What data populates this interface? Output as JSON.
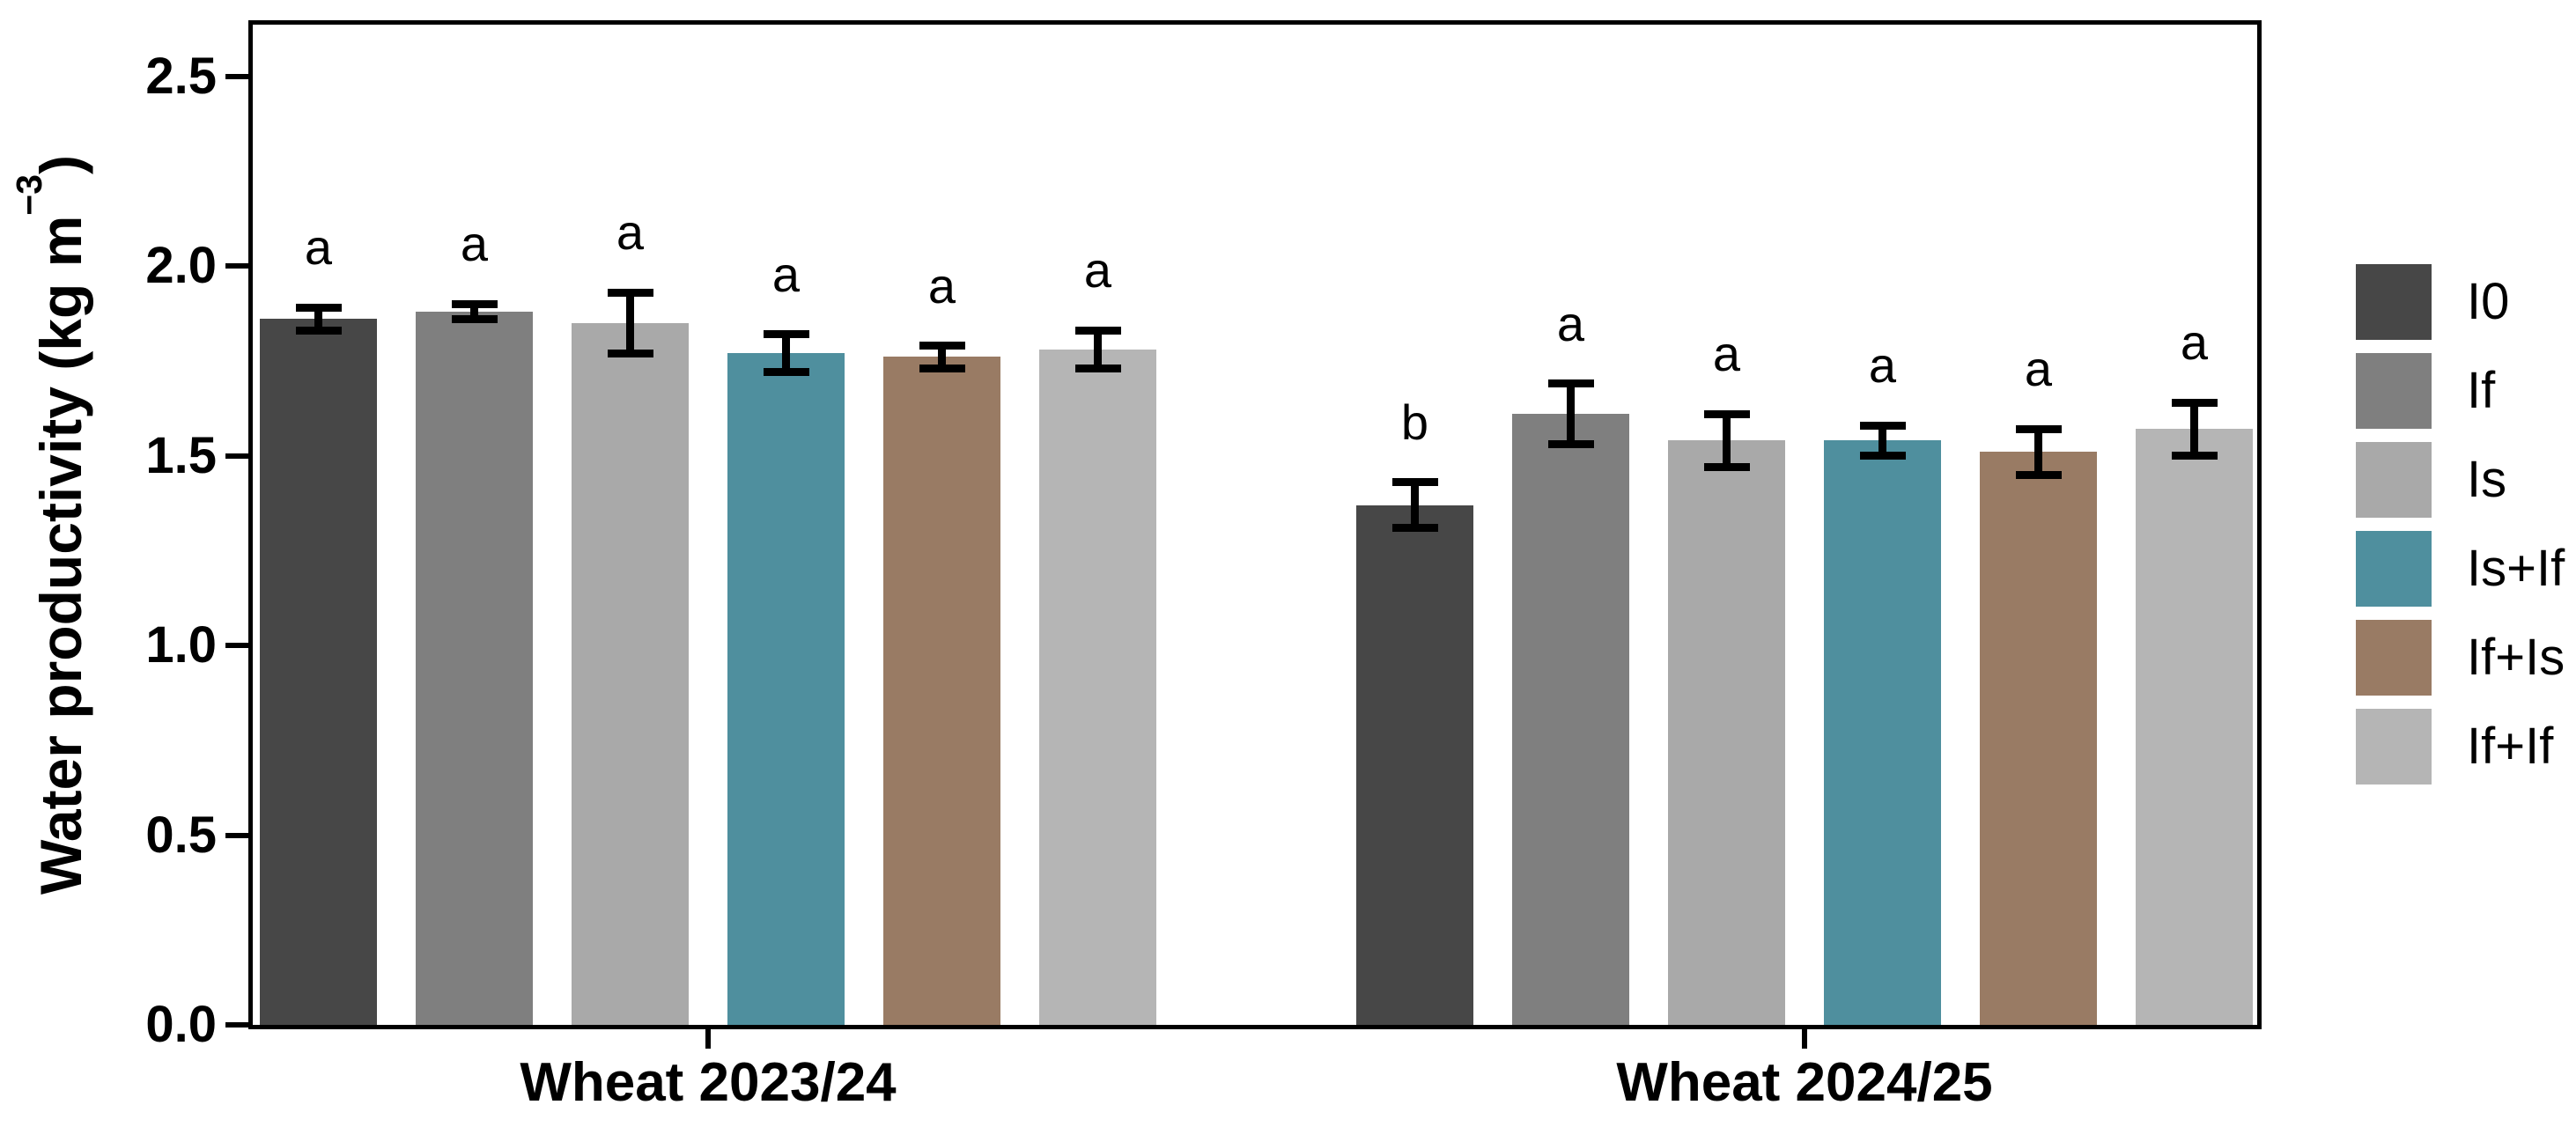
{
  "chart_data": {
    "type": "bar",
    "title": "",
    "ylabel": {
      "text": "Water productivity (kg m",
      "sup": "−3",
      "close": ")"
    },
    "xlabel": "",
    "ylim": [
      0,
      2.63
    ],
    "grid": false,
    "legend_position": "right",
    "background": "#ffffff",
    "axis_color": "#000000",
    "yticks": [
      {
        "v": 0.0,
        "label": "0.0"
      },
      {
        "v": 0.5,
        "label": "0.5"
      },
      {
        "v": 1.0,
        "label": "1.0"
      },
      {
        "v": 1.5,
        "label": "1.5"
      },
      {
        "v": 2.0,
        "label": "2.0"
      },
      {
        "v": 2.5,
        "label": "2.5"
      }
    ],
    "categories": [
      "Wheat 2023/24",
      "Wheat 2024/25"
    ],
    "series": [
      {
        "name": "I0",
        "color": "#474747",
        "values": [
          1.86,
          1.37
        ],
        "errors": [
          0.03,
          0.06
        ],
        "letters": [
          "a",
          "b"
        ]
      },
      {
        "name": "If",
        "color": "#7f7f7f",
        "values": [
          1.88,
          1.61
        ],
        "errors": [
          0.02,
          0.08
        ],
        "letters": [
          "a",
          "a"
        ]
      },
      {
        "name": "Is",
        "color": "#a9a9a9",
        "values": [
          1.85,
          1.54
        ],
        "errors": [
          0.08,
          0.07
        ],
        "letters": [
          "a",
          "a"
        ]
      },
      {
        "name": "Is+If",
        "color": "#4f8f9e",
        "values": [
          1.77,
          1.54
        ],
        "errors": [
          0.05,
          0.04
        ],
        "letters": [
          "a",
          "a"
        ]
      },
      {
        "name": "If+Is",
        "color": "#997b64",
        "values": [
          1.76,
          1.51
        ],
        "errors": [
          0.03,
          0.06
        ],
        "letters": [
          "a",
          "a"
        ]
      },
      {
        "name": "If+If",
        "color": "#b5b5b5",
        "values": [
          1.78,
          1.57
        ],
        "errors": [
          0.05,
          0.07
        ],
        "letters": [
          "a",
          "a"
        ]
      }
    ]
  }
}
